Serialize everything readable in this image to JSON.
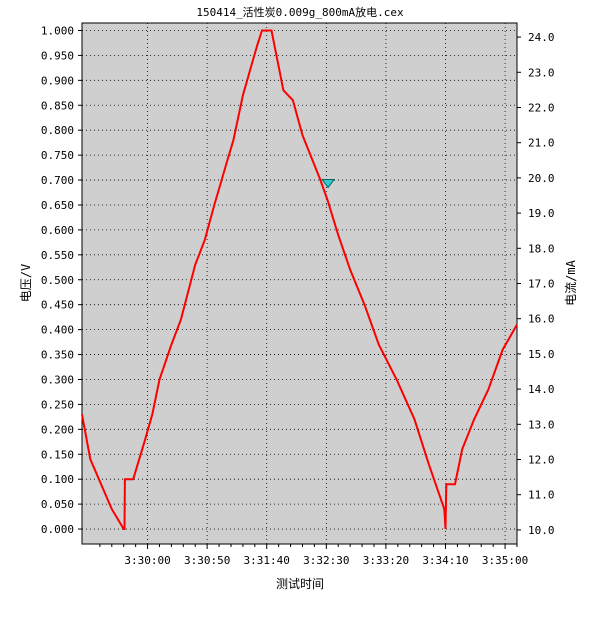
{
  "chart_data": {
    "type": "line",
    "title": "150414_活性炭0.009g_800mA放电.cex",
    "xlabel": "测试时间",
    "ylabel": "电压/V",
    "y2label": "电流/mA",
    "grid": true,
    "x_ticks": [
      "3:30:00",
      "3:30:50",
      "3:31:40",
      "3:32:30",
      "3:33:20",
      "3:34:10",
      "3:35:00"
    ],
    "x_tick_seconds": [
      0,
      50,
      100,
      150,
      200,
      250,
      300
    ],
    "xlim_seconds": [
      -55,
      310
    ],
    "ylim": [
      -0.03,
      1.015
    ],
    "y_ticks": [
      "0.000",
      "0.050",
      "0.100",
      "0.150",
      "0.200",
      "0.250",
      "0.300",
      "0.350",
      "0.400",
      "0.450",
      "0.500",
      "0.550",
      "0.600",
      "0.650",
      "0.700",
      "0.750",
      "0.800",
      "0.850",
      "0.900",
      "0.950",
      "1.000"
    ],
    "y2lim": [
      9.6,
      24.4
    ],
    "y2_ticks": [
      "10.0",
      "11.0",
      "12.0",
      "13.0",
      "14.0",
      "15.0",
      "16.0",
      "17.0",
      "18.0",
      "19.0",
      "20.0",
      "21.0",
      "22.0",
      "23.0",
      "24.0"
    ],
    "series": [
      {
        "color": "#ff0000",
        "x_seconds": [
          -55,
          -48,
          -30,
          -20,
          -19.3,
          -19,
          -12,
          -2,
          4,
          10,
          20,
          28,
          40,
          48,
          56,
          61,
          67,
          72,
          80,
          86,
          92,
          96,
          104,
          114,
          122,
          130,
          145,
          151,
          160,
          170,
          182,
          194,
          209,
          224,
          236,
          249,
          250,
          250.7,
          258,
          264,
          274,
          286,
          298,
          310
        ],
        "values": [
          0.23,
          0.14,
          0.04,
          0.0,
          0.0,
          0.1,
          0.1,
          0.18,
          0.23,
          0.3,
          0.37,
          0.42,
          0.53,
          0.58,
          0.65,
          0.69,
          0.74,
          0.78,
          0.87,
          0.92,
          0.97,
          1.0,
          1.0,
          0.88,
          0.86,
          0.79,
          0.7,
          0.66,
          0.59,
          0.52,
          0.45,
          0.37,
          0.3,
          0.22,
          0.13,
          0.04,
          0.0,
          0.09,
          0.09,
          0.16,
          0.22,
          0.28,
          0.36,
          0.41
        ]
      }
    ],
    "marker": {
      "x_seconds": 151.5,
      "value": 0.695,
      "shape": "triangle-down",
      "color": "#33cccc"
    }
  }
}
